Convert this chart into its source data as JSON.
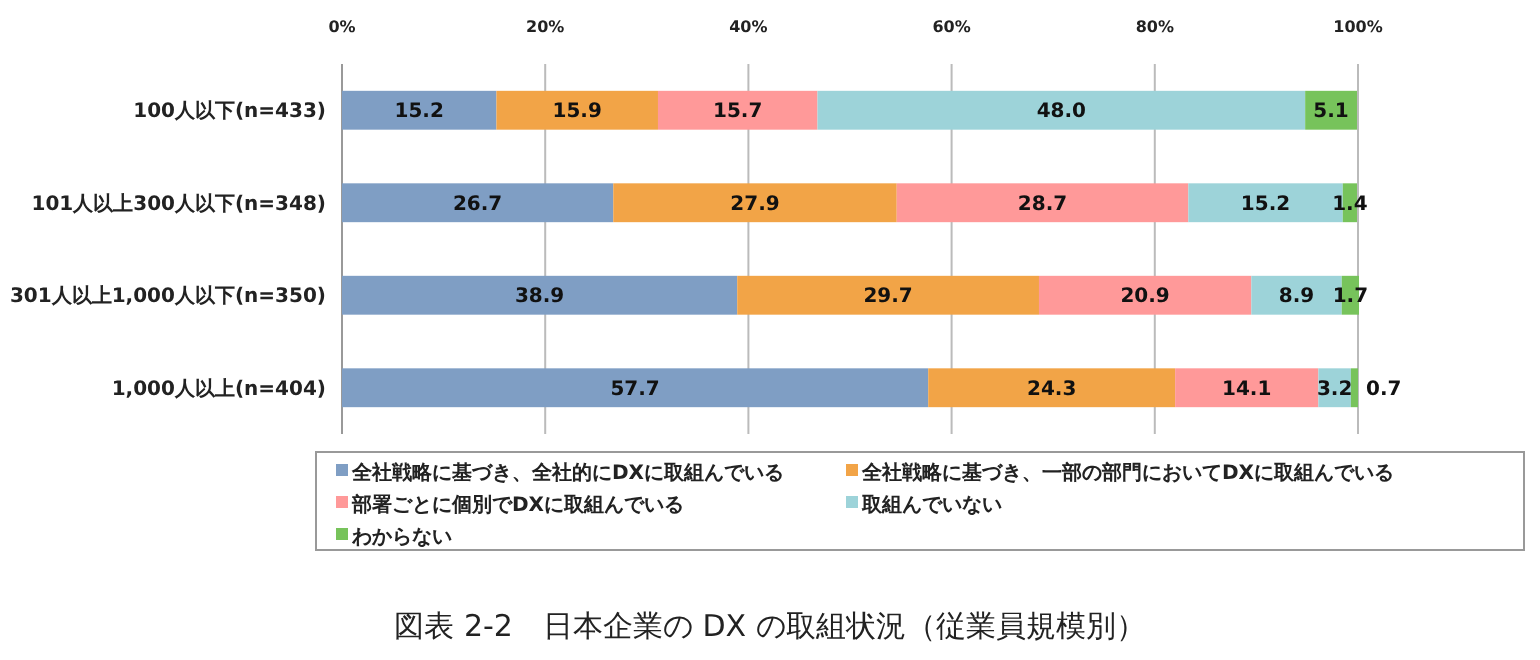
{
  "chart_data": {
    "type": "bar",
    "orientation": "horizontal",
    "stacked": true,
    "title": "図表 2-2　日本企業の DX の取組状況（従業員規模別）",
    "categories": [
      "100人以下(n=433)",
      "101人以上300人以下(n=348)",
      "301人以上1,000人以下(n=350)",
      "1,000人以上(n=404)"
    ],
    "series": [
      {
        "name": "全社戦略に基づき、全社的にDXに取組んでいる",
        "color": "#7f9ec4",
        "values": [
          15.2,
          26.7,
          38.9,
          57.7
        ],
        "value_labels": [
          "15.2",
          "26.7",
          "38.9",
          "57.7"
        ]
      },
      {
        "name": "全社戦略に基づき、一部の部門においてDXに取組んでいる",
        "color": "#f2a447",
        "values": [
          15.9,
          27.9,
          29.7,
          24.3
        ],
        "value_labels": [
          "15.9",
          "27.9",
          "29.7",
          "24.3"
        ]
      },
      {
        "name": "部署ごとに個別でDXに取組んでいる",
        "color": "#ff9999",
        "values": [
          15.7,
          28.7,
          20.9,
          14.1
        ],
        "value_labels": [
          "15.7",
          "28.7",
          "20.9",
          "14.1"
        ]
      },
      {
        "name": "取組んでいない",
        "color": "#9dd3d9",
        "values": [
          48.0,
          15.2,
          8.9,
          3.2
        ],
        "value_labels": [
          "48.0",
          "15.2",
          "8.9",
          "3.2"
        ]
      },
      {
        "name": "わからない",
        "color": "#77c35b",
        "values": [
          5.1,
          1.4,
          1.7,
          0.7
        ],
        "value_labels": [
          "5.1",
          "1.4",
          "1.7",
          "0.7"
        ]
      }
    ],
    "xlim": [
      0,
      100
    ],
    "xticks": [
      {
        "value": 0,
        "label": "0%"
      },
      {
        "value": 20,
        "label": "20%"
      },
      {
        "value": 40,
        "label": "40%"
      },
      {
        "value": 60,
        "label": "60%"
      },
      {
        "value": 80,
        "label": "80%"
      },
      {
        "value": 100,
        "label": "100%"
      }
    ],
    "grid": "x",
    "legend": "bottom"
  }
}
